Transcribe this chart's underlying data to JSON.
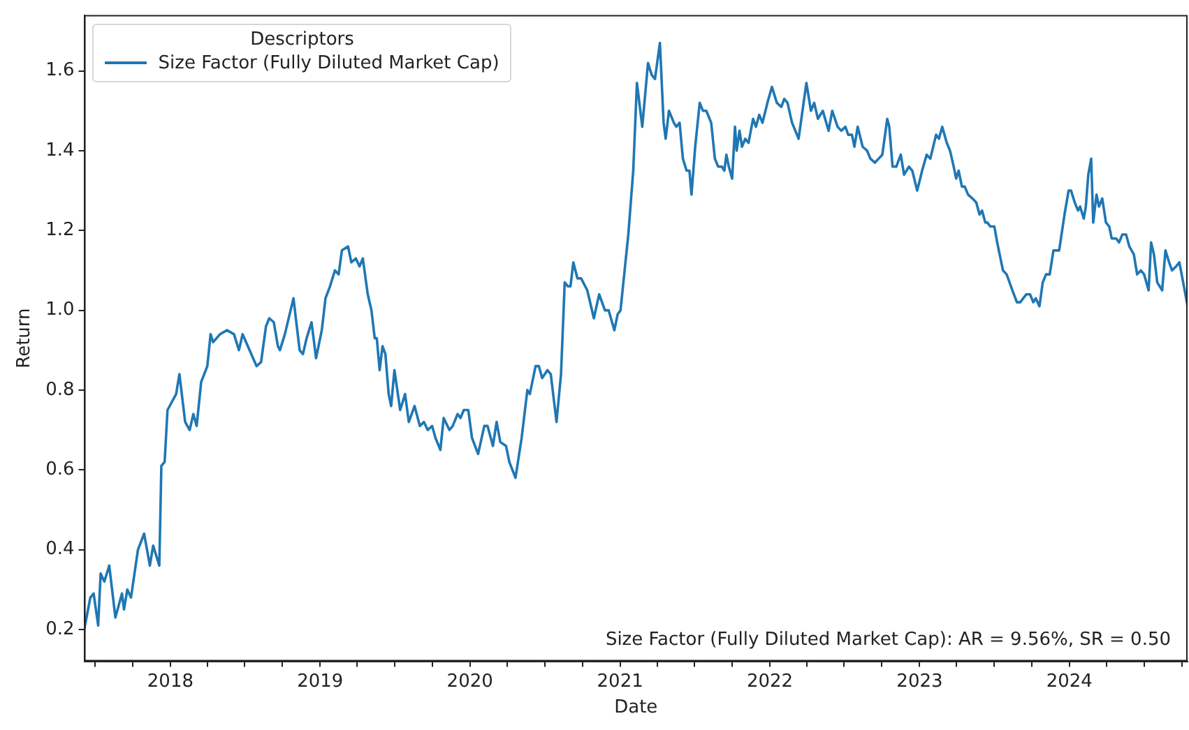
{
  "chart_data": {
    "type": "line",
    "xlabel": "Date",
    "ylabel": "Return",
    "legend_title": "Descriptors",
    "legend": "top left",
    "grid": false,
    "marker": "none",
    "line_style": "solid",
    "annotations": [
      "Size Factor (Fully Diluted Market Cap): AR = 9.56%, SR = 0.50"
    ],
    "xlim": [
      "2017-06-05",
      "2024-10-15"
    ],
    "ylim": [
      0.12,
      1.74
    ],
    "yticks": [
      0.2,
      0.4,
      0.6,
      0.8,
      {
        "value": 1,
        "label": "1.0"
      },
      1.2,
      1.4,
      1.6
    ],
    "xticks": [
      {
        "value": "2017-07-01",
        "label": null
      },
      {
        "value": "2017-10-01",
        "label": null
      },
      {
        "value": "2018-01-01",
        "label": "2018"
      },
      {
        "value": "2018-04-01",
        "label": null
      },
      {
        "value": "2018-07-01",
        "label": null
      },
      {
        "value": "2018-10-01",
        "label": null
      },
      {
        "value": "2019-01-01",
        "label": "2019"
      },
      {
        "value": "2019-04-01",
        "label": null
      },
      {
        "value": "2019-07-01",
        "label": null
      },
      {
        "value": "2019-10-01",
        "label": null
      },
      {
        "value": "2020-01-01",
        "label": "2020"
      },
      {
        "value": "2020-04-01",
        "label": null
      },
      {
        "value": "2020-07-01",
        "label": null
      },
      {
        "value": "2020-10-01",
        "label": null
      },
      {
        "value": "2021-01-01",
        "label": "2021"
      },
      {
        "value": "2021-04-01",
        "label": null
      },
      {
        "value": "2021-07-01",
        "label": null
      },
      {
        "value": "2021-10-01",
        "label": null
      },
      {
        "value": "2022-01-01",
        "label": "2022"
      },
      {
        "value": "2022-04-01",
        "label": null
      },
      {
        "value": "2022-07-01",
        "label": null
      },
      {
        "value": "2022-10-01",
        "label": null
      },
      {
        "value": "2023-01-01",
        "label": "2023"
      },
      {
        "value": "2023-04-01",
        "label": null
      },
      {
        "value": "2023-07-01",
        "label": null
      },
      {
        "value": "2023-10-01",
        "label": null
      },
      {
        "value": "2024-01-01",
        "label": "2024"
      },
      {
        "value": "2024-04-01",
        "label": null
      },
      {
        "value": "2024-07-01",
        "label": null
      },
      {
        "value": "2024-10-01",
        "label": null
      }
    ],
    "series": [
      {
        "name": "Size Factor (Fully Diluted Market Cap)",
        "color": "#1f77b4",
        "x": [
          "2017-06-05",
          "2017-06-20",
          "2017-06-28",
          "2017-07-09",
          "2017-07-15",
          "2017-07-24",
          "2017-08-05",
          "2017-08-20",
          "2017-09-05",
          "2017-09-10",
          "2017-09-18",
          "2017-09-27",
          "2017-10-14",
          "2017-10-29",
          "2017-11-12",
          "2017-11-20",
          "2017-12-05",
          "2017-12-10",
          "2017-12-18",
          "2017-12-25",
          "2018-01-15",
          "2018-01-23",
          "2018-02-06",
          "2018-02-17",
          "2018-02-26",
          "2018-03-06",
          "2018-03-17",
          "2018-04-01",
          "2018-04-09",
          "2018-04-15",
          "2018-05-02",
          "2018-05-19",
          "2018-06-05",
          "2018-06-17",
          "2018-06-26",
          "2018-07-13",
          "2018-07-30",
          "2018-08-10",
          "2018-08-22",
          "2018-08-30",
          "2018-09-10",
          "2018-09-20",
          "2018-09-25",
          "2018-10-07",
          "2018-10-28",
          "2018-11-12",
          "2018-11-20",
          "2018-11-29",
          "2018-12-11",
          "2018-12-22",
          "2019-01-05",
          "2019-01-14",
          "2019-01-25",
          "2019-02-06",
          "2019-02-15",
          "2019-02-23",
          "2019-03-10",
          "2019-03-18",
          "2019-03-29",
          "2019-04-07",
          "2019-04-15",
          "2019-04-27",
          "2019-05-06",
          "2019-05-14",
          "2019-05-19",
          "2019-05-26",
          "2019-06-02",
          "2019-06-09",
          "2019-06-17",
          "2019-06-23",
          "2019-07-01",
          "2019-07-15",
          "2019-07-27",
          "2019-08-05",
          "2019-08-19",
          "2019-09-01",
          "2019-09-11",
          "2019-09-20",
          "2019-10-01",
          "2019-10-09",
          "2019-10-21",
          "2019-10-29",
          "2019-11-12",
          "2019-11-20",
          "2019-12-02",
          "2019-12-09",
          "2019-12-17",
          "2019-12-28",
          "2020-01-06",
          "2020-01-21",
          "2020-02-05",
          "2020-02-13",
          "2020-02-26",
          "2020-03-06",
          "2020-03-15",
          "2020-03-29",
          "2020-04-06",
          "2020-04-21",
          "2020-05-06",
          "2020-05-20",
          "2020-05-26",
          "2020-06-09",
          "2020-06-17",
          "2020-06-25",
          "2020-07-08",
          "2020-07-16",
          "2020-07-30",
          "2020-08-10",
          "2020-08-19",
          "2020-08-27",
          "2020-09-02",
          "2020-09-09",
          "2020-09-19",
          "2020-09-28",
          "2020-10-13",
          "2020-10-29",
          "2020-11-11",
          "2020-11-25",
          "2020-12-04",
          "2020-12-18",
          "2020-12-26",
          "2021-01-02",
          "2021-01-21",
          "2021-02-02",
          "2021-02-11",
          "2021-02-24",
          "2021-03-10",
          "2021-03-19",
          "2021-03-27",
          "2021-04-08",
          "2021-04-17",
          "2021-04-22",
          "2021-04-30",
          "2021-05-12",
          "2021-05-18",
          "2021-05-26",
          "2021-06-03",
          "2021-06-12",
          "2021-06-19",
          "2021-06-24",
          "2021-07-03",
          "2021-07-14",
          "2021-07-22",
          "2021-07-30",
          "2021-08-11",
          "2021-08-20",
          "2021-08-28",
          "2021-09-06",
          "2021-09-12",
          "2021-09-17",
          "2021-09-23",
          "2021-10-01",
          "2021-10-08",
          "2021-10-12",
          "2021-10-19",
          "2021-10-25",
          "2021-11-02",
          "2021-11-10",
          "2021-11-21",
          "2021-11-28",
          "2021-12-06",
          "2021-12-14",
          "2021-12-26",
          "2022-01-06",
          "2022-01-18",
          "2022-01-29",
          "2022-02-05",
          "2022-02-13",
          "2022-02-24",
          "2022-03-12",
          "2022-03-31",
          "2022-04-11",
          "2022-04-19",
          "2022-04-28",
          "2022-05-10",
          "2022-05-24",
          "2022-06-02",
          "2022-06-15",
          "2022-06-24",
          "2022-07-04",
          "2022-07-11",
          "2022-07-20",
          "2022-07-26",
          "2022-08-03",
          "2022-08-15",
          "2022-08-26",
          "2022-09-03",
          "2022-09-14",
          "2022-09-23",
          "2022-10-02",
          "2022-10-14",
          "2022-10-19",
          "2022-10-27",
          "2022-11-05",
          "2022-11-16",
          "2022-11-24",
          "2022-12-06",
          "2022-12-14",
          "2022-12-26",
          "2023-01-07",
          "2023-01-18",
          "2023-01-27",
          "2023-02-10",
          "2023-02-17",
          "2023-02-25",
          "2023-03-08",
          "2023-03-16",
          "2023-03-25",
          "2023-03-31",
          "2023-04-06",
          "2023-04-14",
          "2023-04-21",
          "2023-04-29",
          "2023-05-10",
          "2023-05-19",
          "2023-05-27",
          "2023-06-02",
          "2023-06-10",
          "2023-06-15",
          "2023-06-22",
          "2023-07-02",
          "2023-07-09",
          "2023-07-15",
          "2023-07-23",
          "2023-08-01",
          "2023-08-15",
          "2023-08-26",
          "2023-09-03",
          "2023-09-18",
          "2023-09-27",
          "2023-10-05",
          "2023-10-11",
          "2023-10-20",
          "2023-10-28",
          "2023-11-05",
          "2023-11-14",
          "2023-11-23",
          "2023-12-07",
          "2023-12-20",
          "2023-12-30",
          "2024-01-05",
          "2024-01-14",
          "2024-01-22",
          "2024-01-27",
          "2024-02-05",
          "2024-02-10",
          "2024-02-16",
          "2024-02-23",
          "2024-02-28",
          "2024-03-07",
          "2024-03-13",
          "2024-03-21",
          "2024-03-30",
          "2024-04-07",
          "2024-04-13",
          "2024-04-24",
          "2024-05-01",
          "2024-05-09",
          "2024-05-18",
          "2024-05-26",
          "2024-06-06",
          "2024-06-14",
          "2024-06-23",
          "2024-07-01",
          "2024-07-12",
          "2024-07-18",
          "2024-07-25",
          "2024-08-02",
          "2024-08-14",
          "2024-08-22",
          "2024-08-31",
          "2024-09-07",
          "2024-09-17",
          "2024-09-25",
          "2024-10-06",
          "2024-10-15"
        ],
        "values": [
          0.2,
          0.28,
          0.29,
          0.21,
          0.34,
          0.32,
          0.36,
          0.23,
          0.29,
          0.25,
          0.3,
          0.28,
          0.4,
          0.44,
          0.36,
          0.41,
          0.36,
          0.61,
          0.62,
          0.75,
          0.79,
          0.84,
          0.72,
          0.7,
          0.74,
          0.71,
          0.82,
          0.86,
          0.94,
          0.92,
          0.94,
          0.95,
          0.94,
          0.9,
          0.94,
          0.9,
          0.86,
          0.87,
          0.96,
          0.98,
          0.97,
          0.91,
          0.9,
          0.94,
          1.03,
          0.9,
          0.89,
          0.93,
          0.97,
          0.88,
          0.95,
          1.03,
          1.06,
          1.1,
          1.09,
          1.15,
          1.16,
          1.12,
          1.13,
          1.11,
          1.13,
          1.04,
          1.0,
          0.93,
          0.93,
          0.85,
          0.91,
          0.89,
          0.79,
          0.76,
          0.85,
          0.75,
          0.79,
          0.72,
          0.76,
          0.71,
          0.72,
          0.7,
          0.71,
          0.68,
          0.65,
          0.73,
          0.7,
          0.71,
          0.74,
          0.73,
          0.75,
          0.75,
          0.68,
          0.64,
          0.71,
          0.71,
          0.66,
          0.72,
          0.67,
          0.66,
          0.62,
          0.58,
          0.68,
          0.8,
          0.79,
          0.86,
          0.86,
          0.83,
          0.85,
          0.84,
          0.72,
          0.84,
          1.07,
          1.06,
          1.06,
          1.12,
          1.08,
          1.08,
          1.05,
          0.98,
          1.04,
          1.0,
          1.0,
          0.95,
          0.99,
          1.0,
          1.19,
          1.35,
          1.57,
          1.46,
          1.62,
          1.59,
          1.58,
          1.67,
          1.47,
          1.43,
          1.5,
          1.47,
          1.46,
          1.47,
          1.38,
          1.35,
          1.35,
          1.29,
          1.41,
          1.52,
          1.5,
          1.5,
          1.47,
          1.38,
          1.36,
          1.36,
          1.35,
          1.39,
          1.36,
          1.33,
          1.46,
          1.4,
          1.45,
          1.41,
          1.43,
          1.42,
          1.48,
          1.46,
          1.49,
          1.47,
          1.52,
          1.56,
          1.52,
          1.51,
          1.53,
          1.52,
          1.47,
          1.43,
          1.57,
          1.5,
          1.52,
          1.48,
          1.5,
          1.45,
          1.5,
          1.46,
          1.45,
          1.46,
          1.44,
          1.44,
          1.41,
          1.46,
          1.41,
          1.4,
          1.38,
          1.37,
          1.38,
          1.39,
          1.48,
          1.46,
          1.36,
          1.36,
          1.39,
          1.34,
          1.36,
          1.35,
          1.3,
          1.35,
          1.39,
          1.38,
          1.44,
          1.43,
          1.46,
          1.42,
          1.4,
          1.36,
          1.33,
          1.35,
          1.31,
          1.31,
          1.29,
          1.28,
          1.27,
          1.24,
          1.25,
          1.22,
          1.22,
          1.21,
          1.21,
          1.17,
          1.14,
          1.1,
          1.09,
          1.05,
          1.02,
          1.02,
          1.04,
          1.04,
          1.02,
          1.03,
          1.01,
          1.07,
          1.09,
          1.09,
          1.15,
          1.15,
          1.24,
          1.3,
          1.3,
          1.27,
          1.25,
          1.26,
          1.23,
          1.26,
          1.34,
          1.38,
          1.22,
          1.29,
          1.26,
          1.28,
          1.22,
          1.21,
          1.18,
          1.18,
          1.17,
          1.19,
          1.19,
          1.16,
          1.14,
          1.09,
          1.1,
          1.09,
          1.05,
          1.17,
          1.14,
          1.07,
          1.05,
          1.15,
          1.12,
          1.1,
          1.11,
          1.12,
          1.06,
          1.01
        ]
      }
    ]
  }
}
